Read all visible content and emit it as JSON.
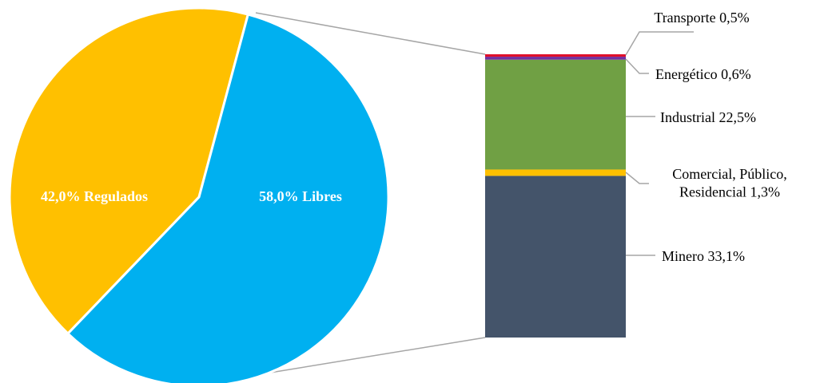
{
  "chart_data": {
    "type": "bar-of-pie",
    "pie": {
      "slices": [
        {
          "label": "42,0% Regulados",
          "value": 42.0,
          "color": "#FFC000"
        },
        {
          "label": "58,0% Libres",
          "value": 58.0,
          "color": "#00B0F0"
        }
      ]
    },
    "bar": {
      "segments": [
        {
          "key": "minero",
          "value": 33.1,
          "color": "#44546A",
          "label_lines": [
            "Minero 33,1%"
          ]
        },
        {
          "key": "comercial",
          "value": 1.3,
          "color": "#FFC000",
          "label_lines": [
            "Comercial, Público,",
            "Residencial 1,3%"
          ]
        },
        {
          "key": "industrial",
          "value": 22.5,
          "color": "#70A044",
          "label_lines": [
            "Industrial 22,5%"
          ]
        },
        {
          "key": "energetico",
          "value": 0.6,
          "color": "#7030A0",
          "label_lines": [
            "Energético 0,6%"
          ]
        },
        {
          "key": "transporte",
          "value": 0.5,
          "color": "#E0102A",
          "label_lines": [
            "Transporte 0,5%"
          ]
        }
      ]
    }
  }
}
